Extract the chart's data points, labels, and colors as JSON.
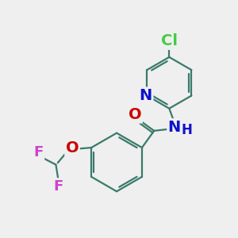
{
  "background_color": "#efefef",
  "atom_colors": {
    "C": "#3a7a6a",
    "N": "#1010cc",
    "O": "#cc0000",
    "F": "#cc44cc",
    "Cl": "#44cc44",
    "H": "#3a7a6a"
  },
  "bond_color": "#3a7a6a",
  "bond_width": 1.6,
  "font_size": 13
}
